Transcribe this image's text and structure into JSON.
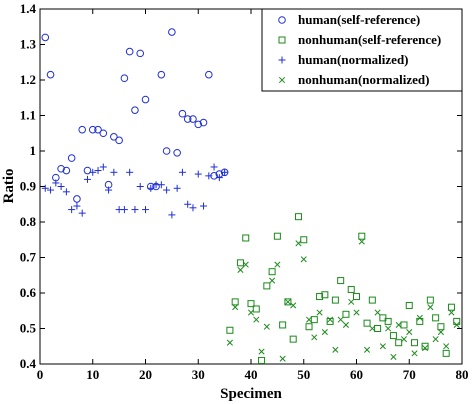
{
  "chart_data": {
    "type": "scatter",
    "title": "",
    "xlabel": "Specimen",
    "ylabel": "Ratio",
    "xlim": [
      0,
      80
    ],
    "ylim": [
      0.4,
      1.4
    ],
    "xticks": [
      "0",
      "10",
      "20",
      "30",
      "40",
      "50",
      "60",
      "70",
      "80"
    ],
    "yticks": [
      "0.4",
      "0.5",
      "0.6",
      "0.7",
      "0.8",
      "0.9",
      "1",
      "1.1",
      "1.2",
      "1.3",
      "1.4"
    ],
    "grid": false,
    "legend_position": "top-right",
    "series": [
      {
        "name": "human(self-reference)",
        "marker": "circle",
        "color": "#1f2fd4",
        "x": [
          1,
          2,
          3,
          4,
          5,
          6,
          7,
          8,
          9,
          10,
          11,
          12,
          13,
          14,
          15,
          16,
          17,
          18,
          19,
          20,
          21,
          22,
          23,
          24,
          25,
          26,
          27,
          28,
          29,
          30,
          31,
          32,
          33,
          34,
          35
        ],
        "y": [
          1.32,
          1.215,
          0.925,
          0.95,
          0.945,
          0.98,
          0.865,
          1.06,
          0.945,
          1.06,
          1.06,
          1.05,
          0.905,
          1.04,
          1.03,
          1.205,
          1.28,
          1.115,
          1.275,
          1.145,
          0.9,
          0.9,
          1.215,
          1.0,
          1.335,
          0.995,
          1.105,
          1.09,
          1.09,
          1.075,
          1.08,
          1.215,
          0.93,
          0.935,
          0.94
        ]
      },
      {
        "name": "nonhuman(self-reference)",
        "marker": "square",
        "color": "#1a8a1a",
        "x": [
          36,
          37,
          38,
          39,
          40,
          41,
          42,
          43,
          44,
          45,
          46,
          47,
          48,
          49,
          50,
          51,
          52,
          53,
          54,
          55,
          56,
          57,
          58,
          59,
          60,
          61,
          62,
          63,
          64,
          65,
          66,
          67,
          68,
          69,
          70,
          71,
          72,
          73,
          74,
          75,
          76,
          77,
          78,
          79
        ],
        "y": [
          0.495,
          0.575,
          0.685,
          0.755,
          0.57,
          0.555,
          0.41,
          0.62,
          0.66,
          0.76,
          0.51,
          0.575,
          0.47,
          0.815,
          0.75,
          0.505,
          0.525,
          0.59,
          0.595,
          0.52,
          0.58,
          0.635,
          0.54,
          0.61,
          0.59,
          0.76,
          0.515,
          0.58,
          0.5,
          0.53,
          0.52,
          0.48,
          0.46,
          0.51,
          0.565,
          0.46,
          0.52,
          0.45,
          0.58,
          0.53,
          0.505,
          0.43,
          0.56,
          0.52
        ]
      },
      {
        "name": "human(normalized)",
        "marker": "plus",
        "color": "#1f2fd4",
        "x": [
          1,
          2,
          3,
          4,
          5,
          6,
          7,
          8,
          9,
          10,
          11,
          12,
          13,
          14,
          15,
          16,
          17,
          18,
          19,
          20,
          21,
          22,
          23,
          24,
          25,
          26,
          27,
          28,
          29,
          30,
          31,
          32,
          33,
          34,
          35
        ],
        "y": [
          0.895,
          0.89,
          0.91,
          0.9,
          0.885,
          0.835,
          0.845,
          0.825,
          0.92,
          0.94,
          0.945,
          0.955,
          0.89,
          0.94,
          0.835,
          0.835,
          0.94,
          0.835,
          0.9,
          0.835,
          0.895,
          0.905,
          0.905,
          0.89,
          0.82,
          0.895,
          0.94,
          0.85,
          0.84,
          0.935,
          0.845,
          0.93,
          0.955,
          0.925,
          0.94
        ]
      },
      {
        "name": "nonhuman(normalized)",
        "marker": "x",
        "color": "#1a8a1a",
        "x": [
          36,
          37,
          38,
          39,
          40,
          41,
          42,
          43,
          44,
          45,
          46,
          47,
          48,
          49,
          50,
          51,
          52,
          53,
          54,
          55,
          56,
          57,
          58,
          59,
          60,
          61,
          62,
          63,
          64,
          65,
          66,
          67,
          68,
          69,
          70,
          71,
          72,
          73,
          74,
          75,
          76,
          77,
          78,
          79
        ],
        "y": [
          0.46,
          0.56,
          0.665,
          0.68,
          0.545,
          0.525,
          0.435,
          0.505,
          0.635,
          0.68,
          0.415,
          0.575,
          0.565,
          0.74,
          0.695,
          0.525,
          0.475,
          0.545,
          0.49,
          0.525,
          0.44,
          0.525,
          0.51,
          0.575,
          0.545,
          0.745,
          0.44,
          0.5,
          0.545,
          0.45,
          0.5,
          0.42,
          0.51,
          0.47,
          0.49,
          0.43,
          0.53,
          0.445,
          0.56,
          0.47,
          0.49,
          0.45,
          0.545,
          0.51
        ]
      }
    ]
  }
}
